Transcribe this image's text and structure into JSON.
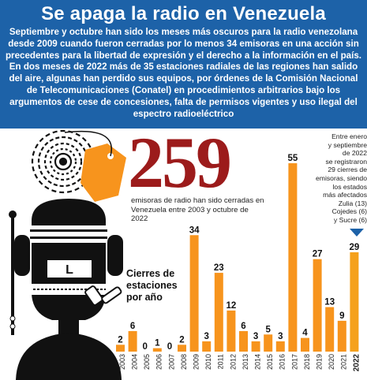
{
  "header": {
    "title": "Se apaga la radio en Venezuela",
    "intro": "Septiembre y octubre han sido los meses más oscuros para la radio venezolana desde 2009 cuando fueron cerradas por lo menos 34 emisoras en una acción sin precedentes para la libertad de expresión y el derecho a la información en el país. En dos meses de 2022 más de 35 estaciones radiales de las regiones han salido del aire, algunas han perdido sus equipos, por órdenes de la Comisión Nacional de Telecomunicaciones (Conatel) en procedimientos arbitrarios bajo los argumentos de cese de concesiones, falta de permisos vigentes y uso ilegal del espectro radioeléctrico"
  },
  "highlight": {
    "number": "259",
    "caption": "emisoras de radio han sido cerradas en Venezuela entre 2003 y octubre de 2022"
  },
  "side_note": {
    "lines": [
      "Entre enero",
      "y septiembre",
      "de 2022",
      "se registraron",
      "29 cierres de",
      "emisoras, siendo",
      "los estados",
      "más afectados",
      "Zulia (13)",
      "Cojedes (6)",
      "y Sucre (6)"
    ]
  },
  "chart_label": "Cierres de estaciones por año",
  "colors": {
    "header_bg": "#1d62a8",
    "bar_fill": "#f7941d",
    "bar_fill_highlight": "#f5a11c",
    "big_number": "#9c1b1b",
    "illustration_dark": "#111111",
    "tag_orange": "#f7941d"
  },
  "icons": [
    "radio-waves-icon",
    "price-tag-icon",
    "gagged-radio-face-icon",
    "zipper-mouth-icon",
    "down-arrow-icon"
  ],
  "chart_data": {
    "type": "bar",
    "title": "",
    "xlabel": "",
    "ylabel": "",
    "categories": [
      "2003",
      "2004",
      "2005",
      "2006",
      "2007",
      "2008",
      "2009",
      "2010",
      "2011",
      "2012",
      "2013",
      "2014",
      "2015",
      "2016",
      "2017",
      "2018",
      "2019",
      "2020",
      "2021",
      "2022"
    ],
    "values": [
      2,
      6,
      0,
      1,
      0,
      2,
      34,
      3,
      23,
      12,
      6,
      3,
      5,
      3,
      55,
      4,
      27,
      13,
      9,
      29
    ],
    "ylim": [
      0,
      58
    ],
    "grid": false,
    "legend": "none"
  }
}
